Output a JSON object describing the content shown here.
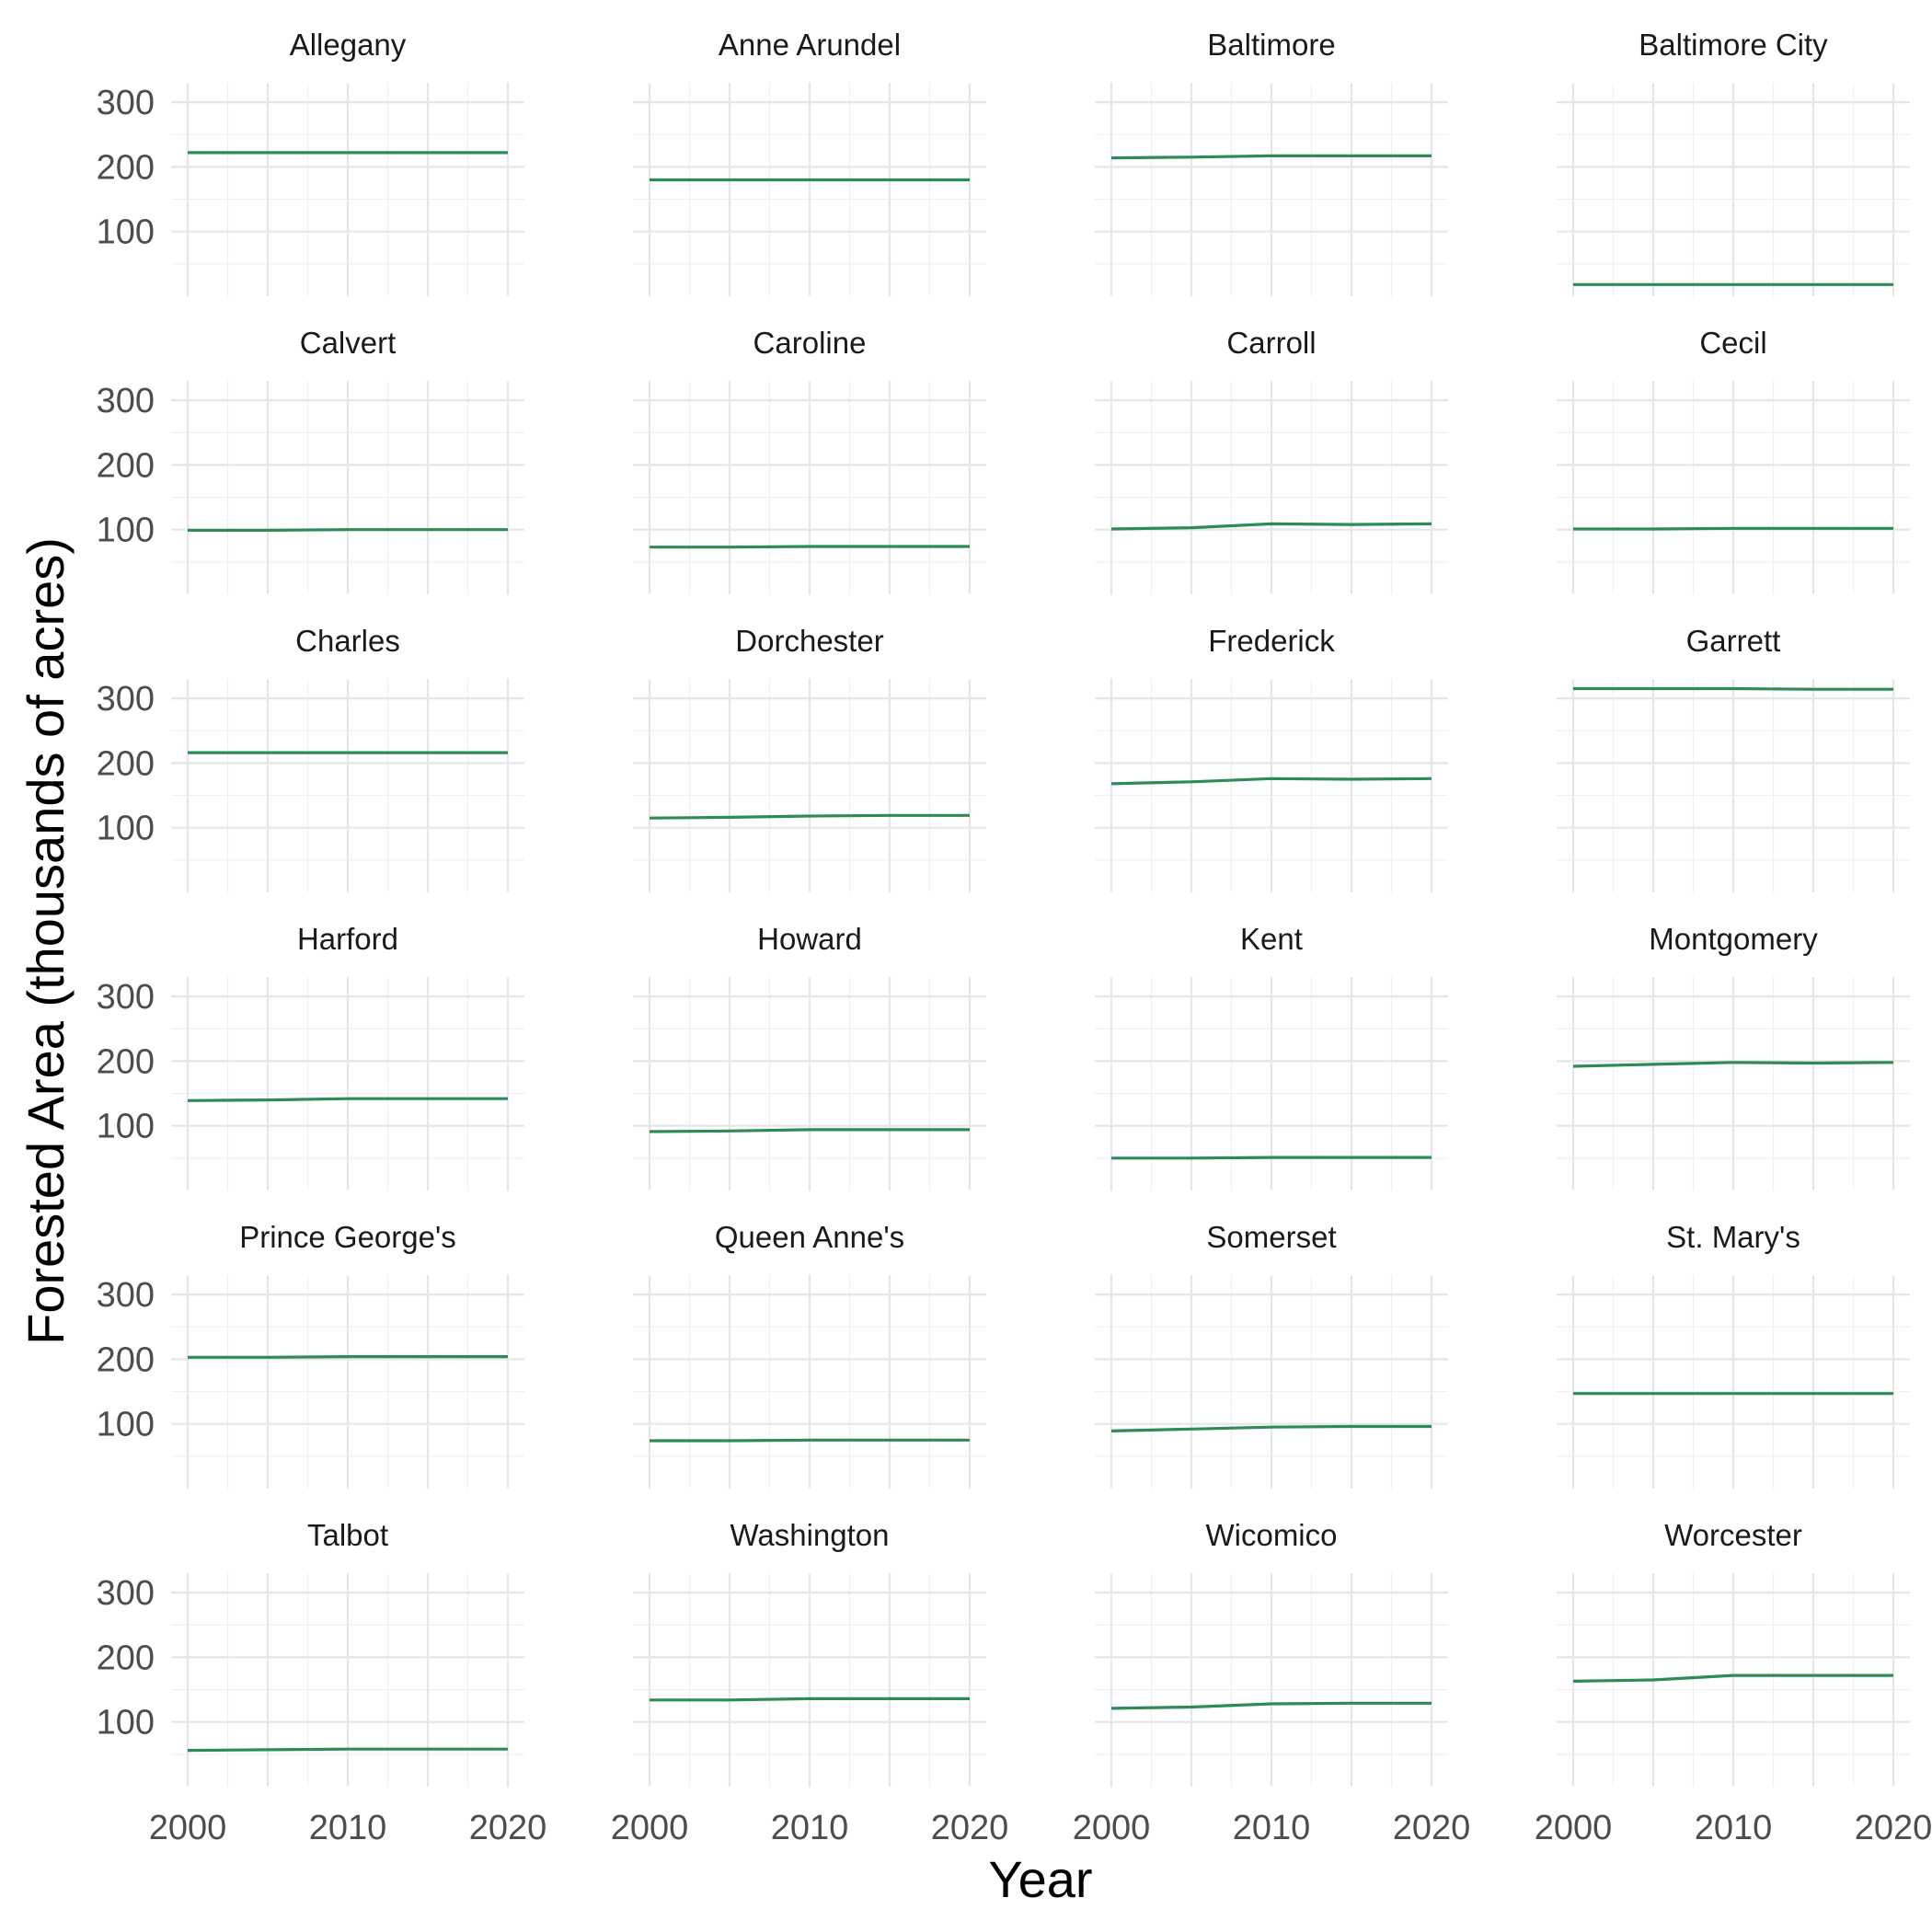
{
  "chart_data": {
    "type": "line",
    "layout": "small-multiples",
    "xlabel": "Year",
    "ylabel": "Forested Area (thousands of acres)",
    "xlim": [
      2000,
      2020
    ],
    "ylim": [
      0,
      330
    ],
    "x_ticks": [
      2000,
      2010,
      2020
    ],
    "y_ticks": [
      100,
      200,
      300
    ],
    "grid": true,
    "line_color": "#2E8B57",
    "x": [
      2000,
      2005,
      2010,
      2015,
      2020
    ],
    "panels": [
      {
        "name": "Allegany",
        "values": [
          222,
          222,
          222,
          222,
          222
        ]
      },
      {
        "name": "Anne Arundel",
        "values": [
          180,
          180,
          180,
          180,
          180
        ]
      },
      {
        "name": "Baltimore",
        "values": [
          214,
          215,
          217,
          217,
          217
        ]
      },
      {
        "name": "Baltimore City",
        "values": [
          18,
          18,
          18,
          18,
          18
        ]
      },
      {
        "name": "Calvert",
        "values": [
          99,
          99,
          100,
          100,
          100
        ]
      },
      {
        "name": "Caroline",
        "values": [
          73,
          73,
          74,
          74,
          74
        ]
      },
      {
        "name": "Carroll",
        "values": [
          101,
          103,
          109,
          108,
          109
        ]
      },
      {
        "name": "Cecil",
        "values": [
          101,
          101,
          102,
          102,
          102
        ]
      },
      {
        "name": "Charles",
        "values": [
          216,
          216,
          216,
          216,
          216
        ]
      },
      {
        "name": "Dorchester",
        "values": [
          115,
          116,
          118,
          119,
          119
        ]
      },
      {
        "name": "Frederick",
        "values": [
          168,
          171,
          176,
          175,
          176
        ]
      },
      {
        "name": "Garrett",
        "values": [
          315,
          315,
          315,
          314,
          314
        ]
      },
      {
        "name": "Harford",
        "values": [
          139,
          140,
          142,
          142,
          142
        ]
      },
      {
        "name": "Howard",
        "values": [
          91,
          92,
          94,
          94,
          94
        ]
      },
      {
        "name": "Kent",
        "values": [
          50,
          50,
          51,
          51,
          51
        ]
      },
      {
        "name": "Montgomery",
        "values": [
          192,
          195,
          198,
          197,
          198
        ]
      },
      {
        "name": "Prince George's",
        "values": [
          203,
          203,
          204,
          204,
          204
        ]
      },
      {
        "name": "Queen Anne's",
        "values": [
          74,
          74,
          75,
          75,
          75
        ]
      },
      {
        "name": "Somerset",
        "values": [
          89,
          92,
          95,
          96,
          96
        ]
      },
      {
        "name": "St. Mary's",
        "values": [
          147,
          147,
          147,
          147,
          147
        ]
      },
      {
        "name": "Talbot",
        "values": [
          56,
          57,
          58,
          58,
          58
        ]
      },
      {
        "name": "Washington",
        "values": [
          134,
          134,
          136,
          136,
          136
        ]
      },
      {
        "name": "Wicomico",
        "values": [
          121,
          123,
          128,
          129,
          129
        ]
      },
      {
        "name": "Worcester",
        "values": [
          163,
          165,
          172,
          172,
          172
        ]
      }
    ]
  }
}
